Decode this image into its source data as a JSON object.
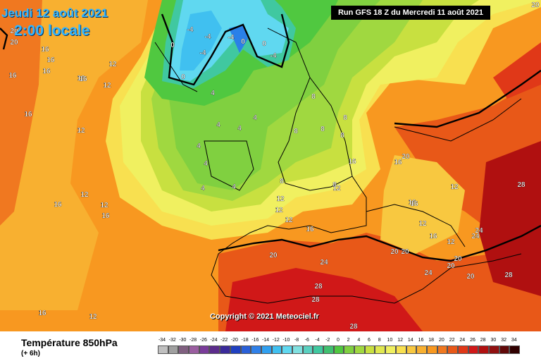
{
  "header": {
    "date": "Jeudi 12 août 2021",
    "local_time": "2:00 locale",
    "run_info": "Run GFS 18 Z du Mercredi 11 août 2021"
  },
  "copyright": "Copyright © 2021 Meteociel.fr",
  "legend": {
    "variable": "Température 850hPa",
    "lead": "(+ 6h)",
    "scale_values": [
      "-34",
      "-32",
      "-30",
      "-28",
      "-26",
      "-24",
      "-22",
      "-20",
      "-18",
      "-16",
      "-14",
      "-12",
      "-10",
      "-8",
      "-6",
      "-4",
      "-2",
      "0",
      "2",
      "4",
      "6",
      "8",
      "10",
      "12",
      "14",
      "16",
      "18",
      "20",
      "22",
      "24",
      "26",
      "28",
      "30",
      "32",
      "34"
    ],
    "scale_colors": [
      "#c0c0c0",
      "#a0a0a0",
      "#806080",
      "#9a5ea0",
      "#7a3c9a",
      "#5c2c8c",
      "#3a2a9a",
      "#2040c0",
      "#2a60d8",
      "#3080e8",
      "#30a0f0",
      "#40c0f0",
      "#60d8f0",
      "#80e0e0",
      "#5ad0c0",
      "#40c8a0",
      "#40c070",
      "#50c840",
      "#80d040",
      "#a0d840",
      "#c8e040",
      "#e0e850",
      "#f0f060",
      "#f8e050",
      "#f8c840",
      "#f8b030",
      "#f89820",
      "#f07820",
      "#e85818",
      "#e03818",
      "#d01818",
      "#b01010",
      "#901010",
      "#600808",
      "#300000"
    ]
  },
  "map_labels": [
    {
      "text": "20"
    },
    {
      "text": "20"
    },
    {
      "text": "16"
    },
    {
      "text": "16"
    },
    {
      "text": "16"
    },
    {
      "text": "16"
    },
    {
      "text": "16"
    },
    {
      "text": "16"
    },
    {
      "text": "12"
    },
    {
      "text": "12"
    },
    {
      "text": "16"
    },
    {
      "text": "12"
    },
    {
      "text": "12"
    },
    {
      "text": "16"
    },
    {
      "text": "12"
    },
    {
      "text": "16"
    },
    {
      "text": "16"
    },
    {
      "text": "12"
    },
    {
      "text": "-4"
    },
    {
      "text": "-4"
    },
    {
      "text": "-4"
    },
    {
      "text": "0"
    },
    {
      "text": "0"
    },
    {
      "text": "-4"
    },
    {
      "text": "0"
    },
    {
      "text": "-4"
    },
    {
      "text": "0"
    },
    {
      "text": "4"
    },
    {
      "text": "4"
    },
    {
      "text": "4"
    },
    {
      "text": "4"
    },
    {
      "text": "4"
    },
    {
      "text": "4"
    },
    {
      "text": "4"
    },
    {
      "text": "4"
    },
    {
      "text": "8"
    },
    {
      "text": "8"
    },
    {
      "text": "8"
    },
    {
      "text": "8"
    },
    {
      "text": "8"
    },
    {
      "text": "8"
    },
    {
      "text": "8"
    },
    {
      "text": "12"
    },
    {
      "text": "12"
    },
    {
      "text": "12"
    },
    {
      "text": "16"
    },
    {
      "text": "16"
    },
    {
      "text": "16"
    },
    {
      "text": "12"
    },
    {
      "text": "16"
    },
    {
      "text": "12"
    },
    {
      "text": "20"
    },
    {
      "text": "20"
    },
    {
      "text": "20"
    },
    {
      "text": "20"
    },
    {
      "text": "20"
    },
    {
      "text": "20"
    },
    {
      "text": "24"
    },
    {
      "text": "24"
    },
    {
      "text": "24"
    },
    {
      "text": "28"
    },
    {
      "text": "28"
    },
    {
      "text": "28"
    },
    {
      "text": "28"
    },
    {
      "text": "28"
    },
    {
      "text": "24"
    },
    {
      "text": "20"
    },
    {
      "text": "20"
    },
    {
      "text": "16"
    },
    {
      "text": "12"
    },
    {
      "text": "16"
    },
    {
      "text": "12"
    }
  ]
}
